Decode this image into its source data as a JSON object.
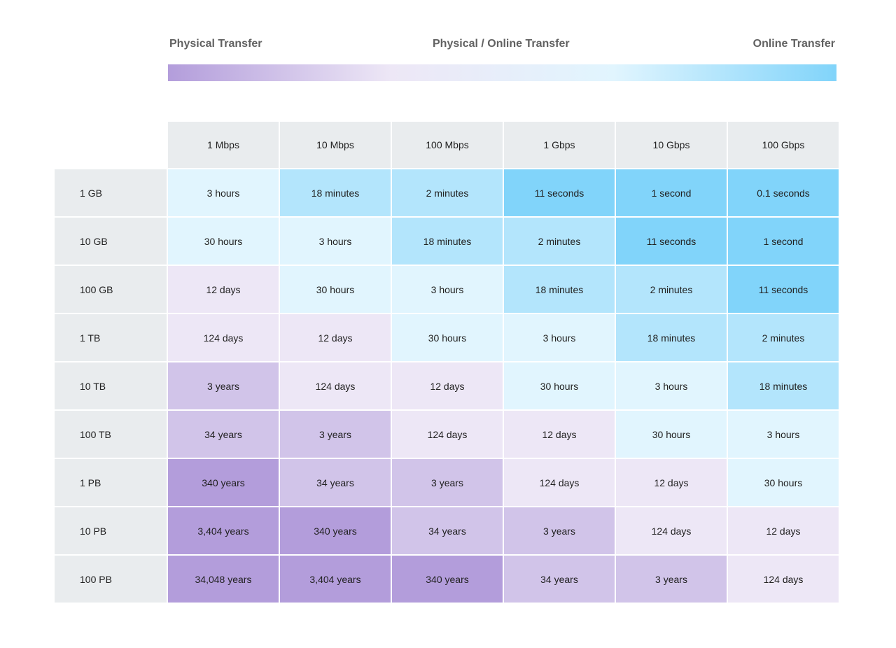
{
  "legend": {
    "left": "Physical Transfer",
    "center": "Physical / Online Transfer",
    "right": "Online Transfer",
    "colors": [
      "#b39ddb",
      "#ede7f6",
      "#e1f5fe",
      "#81d4fa"
    ]
  },
  "table": {
    "header_color": "#e9ecee",
    "columns": [
      "1 Mbps",
      "10 Mbps",
      "100 Mbps",
      "1 Gbps",
      "10 Gbps",
      "100 Gbps"
    ],
    "rows": [
      {
        "label": "1 GB",
        "cells": [
          {
            "text": "3 hours",
            "color": "#e1f5fe"
          },
          {
            "text": "18 minutes",
            "color": "#b3e5fc"
          },
          {
            "text": "2 minutes",
            "color": "#b3e5fc"
          },
          {
            "text": "11 seconds",
            "color": "#81d4fa"
          },
          {
            "text": "1 second",
            "color": "#81d4fa"
          },
          {
            "text": "0.1 seconds",
            "color": "#81d4fa"
          }
        ]
      },
      {
        "label": "10 GB",
        "cells": [
          {
            "text": "30 hours",
            "color": "#e1f5fe"
          },
          {
            "text": "3 hours",
            "color": "#e1f5fe"
          },
          {
            "text": "18 minutes",
            "color": "#b3e5fc"
          },
          {
            "text": "2 minutes",
            "color": "#b3e5fc"
          },
          {
            "text": "11 seconds",
            "color": "#81d4fa"
          },
          {
            "text": "1 second",
            "color": "#81d4fa"
          }
        ]
      },
      {
        "label": "100 GB",
        "cells": [
          {
            "text": "12 days",
            "color": "#ede7f6"
          },
          {
            "text": "30 hours",
            "color": "#e1f5fe"
          },
          {
            "text": "3 hours",
            "color": "#e1f5fe"
          },
          {
            "text": "18 minutes",
            "color": "#b3e5fc"
          },
          {
            "text": "2 minutes",
            "color": "#b3e5fc"
          },
          {
            "text": "11 seconds",
            "color": "#81d4fa"
          }
        ]
      },
      {
        "label": "1 TB",
        "cells": [
          {
            "text": "124 days",
            "color": "#ede7f6"
          },
          {
            "text": "12 days",
            "color": "#ede7f6"
          },
          {
            "text": "30 hours",
            "color": "#e1f5fe"
          },
          {
            "text": "3 hours",
            "color": "#e1f5fe"
          },
          {
            "text": "18 minutes",
            "color": "#b3e5fc"
          },
          {
            "text": "2 minutes",
            "color": "#b3e5fc"
          }
        ]
      },
      {
        "label": "10 TB",
        "cells": [
          {
            "text": "3 years",
            "color": "#d1c4e9"
          },
          {
            "text": "124 days",
            "color": "#ede7f6"
          },
          {
            "text": "12 days",
            "color": "#ede7f6"
          },
          {
            "text": "30 hours",
            "color": "#e1f5fe"
          },
          {
            "text": "3 hours",
            "color": "#e1f5fe"
          },
          {
            "text": "18 minutes",
            "color": "#b3e5fc"
          }
        ]
      },
      {
        "label": "100 TB",
        "cells": [
          {
            "text": "34 years",
            "color": "#d1c4e9"
          },
          {
            "text": "3 years",
            "color": "#d1c4e9"
          },
          {
            "text": "124 days",
            "color": "#ede7f6"
          },
          {
            "text": "12 days",
            "color": "#ede7f6"
          },
          {
            "text": "30 hours",
            "color": "#e1f5fe"
          },
          {
            "text": "3 hours",
            "color": "#e1f5fe"
          }
        ]
      },
      {
        "label": "1 PB",
        "cells": [
          {
            "text": "340 years",
            "color": "#b39ddb"
          },
          {
            "text": "34 years",
            "color": "#d1c4e9"
          },
          {
            "text": "3 years",
            "color": "#d1c4e9"
          },
          {
            "text": "124 days",
            "color": "#ede7f6"
          },
          {
            "text": "12 days",
            "color": "#ede7f6"
          },
          {
            "text": "30 hours",
            "color": "#e1f5fe"
          }
        ]
      },
      {
        "label": "10 PB",
        "cells": [
          {
            "text": "3,404 years",
            "color": "#b39ddb"
          },
          {
            "text": "340 years",
            "color": "#b39ddb"
          },
          {
            "text": "34 years",
            "color": "#d1c4e9"
          },
          {
            "text": "3 years",
            "color": "#d1c4e9"
          },
          {
            "text": "124 days",
            "color": "#ede7f6"
          },
          {
            "text": "12 days",
            "color": "#ede7f6"
          }
        ]
      },
      {
        "label": "100 PB",
        "cells": [
          {
            "text": "34,048 years",
            "color": "#b39ddb"
          },
          {
            "text": "3,404 years",
            "color": "#b39ddb"
          },
          {
            "text": "340 years",
            "color": "#b39ddb"
          },
          {
            "text": "34 years",
            "color": "#d1c4e9"
          },
          {
            "text": "3 years",
            "color": "#d1c4e9"
          },
          {
            "text": "124 days",
            "color": "#ede7f6"
          }
        ]
      }
    ]
  }
}
